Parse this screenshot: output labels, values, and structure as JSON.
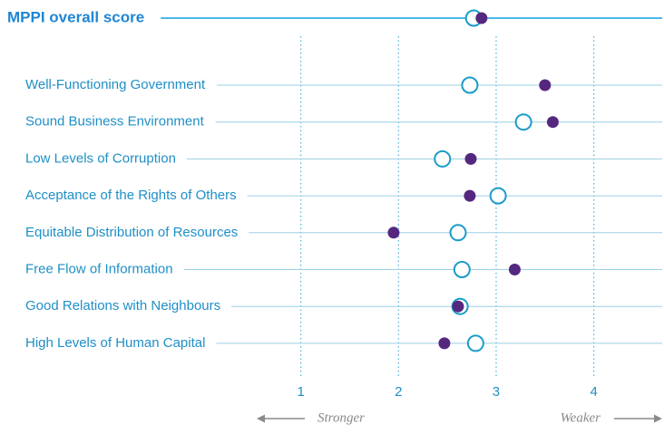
{
  "chart_data": {
    "type": "dot",
    "categories": [
      "MPPI overall score",
      "Well-Functioning Government",
      "Sound Business Environment",
      "Low Levels of Corruption",
      "Acceptance of the Rights of Others",
      "Equitable Distribution of Resources",
      "Free Flow of Information",
      "Good Relations with Neighbours",
      "High Levels of Human Capital"
    ],
    "series": [
      {
        "color": "#1b9cc8",
        "marker": "open",
        "values": [
          2.77,
          2.73,
          3.28,
          2.45,
          3.02,
          2.61,
          2.65,
          2.63,
          2.79
        ]
      },
      {
        "color": "#55287f",
        "marker": "filled",
        "values": [
          2.85,
          3.5,
          3.58,
          2.74,
          2.73,
          1.95,
          3.19,
          2.61,
          2.47
        ]
      }
    ],
    "xlim": [
      0,
      4.7
    ],
    "xticks": [
      1,
      2,
      3,
      4
    ],
    "grid": true,
    "annotations": [
      "Stronger",
      "Weaker"
    ]
  }
}
